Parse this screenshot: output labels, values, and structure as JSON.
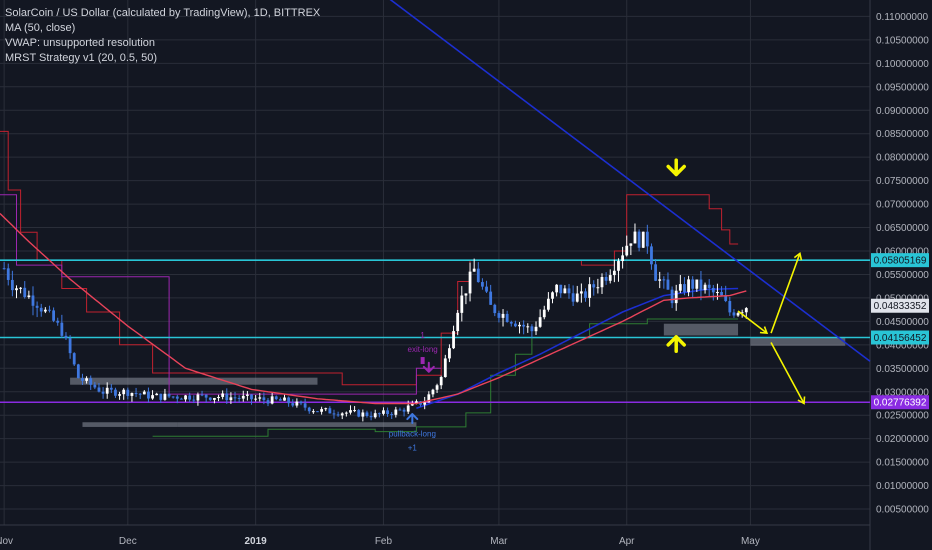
{
  "legend": {
    "line1": "SolarCoin / US Dollar (calculated by TradingView), 1D, BITTREX",
    "line2": "MA (50, close)",
    "line3": "VWAP: unsupported resolution",
    "line4": "MRST Strategy v1 (20, 0.5, 50)"
  },
  "colors": {
    "background": "#131722",
    "grid": "#2a2e39",
    "candle_up": "#ffffff",
    "candle_down": "#3f78e0",
    "ma": "#e8435a",
    "blue_line": "#1c2fd0",
    "cyan_line": "#29c5d6",
    "purple_line": "#8a2be2",
    "channel_upper": "#c0212f",
    "channel_lower": "#2e7d32",
    "channel_purple": "#9c27b0",
    "yellow": "#f5f500"
  },
  "chart_data": {
    "type": "candlestick",
    "y_axis_ticks": [
      "0.11000000",
      "0.10500000",
      "0.10000000",
      "0.09500000",
      "0.09000000",
      "0.08500000",
      "0.08000000",
      "0.07500000",
      "0.07000000",
      "0.06500000",
      "0.06000000",
      "0.05500000",
      "0.05000000",
      "0.04500000",
      "0.04000000",
      "0.03500000",
      "0.03000000",
      "0.02500000",
      "0.02000000",
      "0.01500000",
      "0.01000000",
      "0.00500000"
    ],
    "y_axis_values": [
      0.11,
      0.105,
      0.1,
      0.095,
      0.09,
      0.085,
      0.08,
      0.075,
      0.07,
      0.065,
      0.06,
      0.055,
      0.05,
      0.045,
      0.04,
      0.035,
      0.03,
      0.025,
      0.02,
      0.015,
      0.01,
      0.005
    ],
    "ylim": [
      0.0016,
      0.1135
    ],
    "x_axis_labels": [
      {
        "label": "Nov",
        "bold": false
      },
      {
        "label": "Dec",
        "bold": false
      },
      {
        "label": "2019",
        "bold": true
      },
      {
        "label": "Feb",
        "bold": false
      },
      {
        "label": "Mar",
        "bold": false
      },
      {
        "label": "Apr",
        "bold": false
      },
      {
        "label": "May",
        "bold": false
      }
    ],
    "x_axis_days": [
      0,
      30,
      61,
      92,
      120,
      151,
      181
    ],
    "x_range_days": [
      -1,
      210
    ],
    "price_tags": [
      {
        "label": "0.05805169",
        "value": 0.05805169,
        "bg": "#29c5d6",
        "fg": "#131722"
      },
      {
        "label": "0.04833352",
        "value": 0.04833352,
        "bg": "#e0e3eb",
        "fg": "#131722"
      },
      {
        "label": "0.04156452",
        "value": 0.04156452,
        "bg": "#29c5d6",
        "fg": "#131722"
      },
      {
        "label": "0.02776392",
        "value": 0.02776392,
        "bg": "#8a2be2",
        "fg": "#ffffff"
      }
    ],
    "horizontal_lines": [
      {
        "name": "resistance",
        "value": 0.05805169,
        "color": "#29c5d6"
      },
      {
        "name": "support",
        "value": 0.04156452,
        "color": "#29c5d6"
      },
      {
        "name": "target",
        "value": 0.02776392,
        "color": "#8a2be2"
      }
    ],
    "trendline": {
      "from_day": 84,
      "from_value": 0.12,
      "to_day": 210,
      "to_value": 0.0365
    },
    "annotations": {
      "exit_long": "exit-long",
      "exit_long_num": "1",
      "pullback_long": "pullback-long",
      "pullback_long_num": "+1"
    },
    "anchors": [
      {
        "day": -1,
        "value": 0.058
      },
      {
        "day": 2,
        "value": 0.053
      },
      {
        "day": 8,
        "value": 0.049
      },
      {
        "day": 14,
        "value": 0.043
      },
      {
        "day": 18,
        "value": 0.033
      },
      {
        "day": 24,
        "value": 0.03
      },
      {
        "day": 30,
        "value": 0.03
      },
      {
        "day": 36,
        "value": 0.029
      },
      {
        "day": 44,
        "value": 0.029
      },
      {
        "day": 52,
        "value": 0.029
      },
      {
        "day": 60,
        "value": 0.0285
      },
      {
        "day": 68,
        "value": 0.028
      },
      {
        "day": 76,
        "value": 0.026
      },
      {
        "day": 84,
        "value": 0.0255
      },
      {
        "day": 90,
        "value": 0.025
      },
      {
        "day": 96,
        "value": 0.026
      },
      {
        "day": 102,
        "value": 0.028
      },
      {
        "day": 106,
        "value": 0.033
      },
      {
        "day": 110,
        "value": 0.048
      },
      {
        "day": 114,
        "value": 0.056
      },
      {
        "day": 118,
        "value": 0.048
      },
      {
        "day": 124,
        "value": 0.045
      },
      {
        "day": 128,
        "value": 0.043
      },
      {
        "day": 134,
        "value": 0.052
      },
      {
        "day": 140,
        "value": 0.05
      },
      {
        "day": 146,
        "value": 0.055
      },
      {
        "day": 150,
        "value": 0.06
      },
      {
        "day": 152,
        "value": 0.063
      },
      {
        "day": 156,
        "value": 0.062
      },
      {
        "day": 158,
        "value": 0.055
      },
      {
        "day": 162,
        "value": 0.05
      },
      {
        "day": 166,
        "value": 0.053
      },
      {
        "day": 170,
        "value": 0.052
      },
      {
        "day": 174,
        "value": 0.05
      },
      {
        "day": 176,
        "value": 0.047
      },
      {
        "day": 178,
        "value": 0.0475
      },
      {
        "day": 180,
        "value": 0.0483
      }
    ],
    "ma_anchors": [
      {
        "day": -1,
        "value": 0.068
      },
      {
        "day": 6,
        "value": 0.062
      },
      {
        "day": 16,
        "value": 0.054
      },
      {
        "day": 30,
        "value": 0.044
      },
      {
        "day": 44,
        "value": 0.035
      },
      {
        "day": 60,
        "value": 0.0305
      },
      {
        "day": 76,
        "value": 0.0285
      },
      {
        "day": 90,
        "value": 0.0275
      },
      {
        "day": 100,
        "value": 0.0275
      },
      {
        "day": 110,
        "value": 0.0295
      },
      {
        "day": 120,
        "value": 0.033
      },
      {
        "day": 130,
        "value": 0.037
      },
      {
        "day": 140,
        "value": 0.041
      },
      {
        "day": 150,
        "value": 0.045
      },
      {
        "day": 160,
        "value": 0.0495
      },
      {
        "day": 166,
        "value": 0.05
      },
      {
        "day": 176,
        "value": 0.0505
      },
      {
        "day": 180,
        "value": 0.0515
      }
    ],
    "upper_channel": [
      {
        "day": -1,
        "value": 0.0855
      },
      {
        "day": 1,
        "value": 0.0855
      },
      {
        "day": 1,
        "value": 0.073
      },
      {
        "day": 4,
        "value": 0.073
      },
      {
        "day": 4,
        "value": 0.064
      },
      {
        "day": 8,
        "value": 0.064
      },
      {
        "day": 8,
        "value": 0.058
      },
      {
        "day": 14,
        "value": 0.058
      },
      {
        "day": 14,
        "value": 0.052
      },
      {
        "day": 20,
        "value": 0.052
      },
      {
        "day": 20,
        "value": 0.047
      },
      {
        "day": 28,
        "value": 0.047
      },
      {
        "day": 28,
        "value": 0.04
      },
      {
        "day": 36,
        "value": 0.04
      },
      {
        "day": 36,
        "value": 0.034
      },
      {
        "day": 82,
        "value": 0.034
      },
      {
        "day": 82,
        "value": 0.0315
      },
      {
        "day": 100,
        "value": 0.0315
      },
      {
        "day": 100,
        "value": 0.0335
      },
      {
        "day": 106,
        "value": 0.0335
      },
      {
        "day": 106,
        "value": 0.0425
      },
      {
        "day": 110,
        "value": 0.0425
      },
      {
        "day": 110,
        "value": 0.0535
      },
      {
        "day": 113,
        "value": 0.0535
      },
      {
        "day": 113,
        "value": 0.058
      },
      {
        "day": 140,
        "value": 0.058
      },
      {
        "day": 140,
        "value": 0.057
      },
      {
        "day": 148,
        "value": 0.057
      },
      {
        "day": 148,
        "value": 0.06
      },
      {
        "day": 151,
        "value": 0.06
      },
      {
        "day": 151,
        "value": 0.072
      },
      {
        "day": 171,
        "value": 0.072
      },
      {
        "day": 171,
        "value": 0.069
      },
      {
        "day": 174,
        "value": 0.069
      },
      {
        "day": 174,
        "value": 0.0645
      },
      {
        "day": 176,
        "value": 0.0645
      },
      {
        "day": 176,
        "value": 0.0615
      },
      {
        "day": 178,
        "value": 0.0615
      }
    ],
    "lower_channel": [
      {
        "day": 36,
        "value": 0.0205
      },
      {
        "day": 64,
        "value": 0.0205
      },
      {
        "day": 64,
        "value": 0.022
      },
      {
        "day": 90,
        "value": 0.022
      },
      {
        "day": 90,
        "value": 0.0215
      },
      {
        "day": 100,
        "value": 0.0215
      },
      {
        "day": 100,
        "value": 0.0225
      },
      {
        "day": 112,
        "value": 0.0225
      },
      {
        "day": 112,
        "value": 0.0255
      },
      {
        "day": 118,
        "value": 0.0255
      },
      {
        "day": 118,
        "value": 0.0335
      },
      {
        "day": 124,
        "value": 0.0335
      },
      {
        "day": 124,
        "value": 0.038
      },
      {
        "day": 128,
        "value": 0.038
      },
      {
        "day": 128,
        "value": 0.0415
      },
      {
        "day": 142,
        "value": 0.0415
      },
      {
        "day": 142,
        "value": 0.0445
      },
      {
        "day": 156,
        "value": 0.0445
      },
      {
        "day": 156,
        "value": 0.0455
      },
      {
        "day": 178,
        "value": 0.0455
      }
    ],
    "purple_channel": [
      {
        "day": -1,
        "value": 0.072
      },
      {
        "day": 3,
        "value": 0.072
      },
      {
        "day": 3,
        "value": 0.057
      },
      {
        "day": 14,
        "value": 0.057
      },
      {
        "day": 14,
        "value": 0.0545
      },
      {
        "day": 40,
        "value": 0.0545
      },
      {
        "day": 40,
        "value": 0.0295
      },
      {
        "day": 100,
        "value": 0.0295
      },
      {
        "day": 100,
        "value": 0.035
      },
      {
        "day": 106,
        "value": 0.035
      }
    ],
    "support_boxes": [
      {
        "from_day": 16,
        "to_day": 76,
        "low": 0.0315,
        "high": 0.033
      },
      {
        "from_day": 19,
        "to_day": 42,
        "low": 0.0225,
        "high": 0.0235
      },
      {
        "from_day": 42,
        "to_day": 100,
        "low": 0.0225,
        "high": 0.0235
      },
      {
        "from_day": 160,
        "to_day": 178,
        "low": 0.042,
        "high": 0.0445
      },
      {
        "from_day": 181,
        "to_day": 204,
        "low": 0.0398,
        "high": 0.0415
      }
    ],
    "arrows": [
      {
        "name": "down-arrow-top",
        "day": 163,
        "value": 0.0775,
        "dir": "down",
        "color": "#f5f500"
      },
      {
        "name": "up-arrow-bottom",
        "day": 163,
        "value": 0.0405,
        "dir": "up",
        "color": "#f5f500"
      },
      {
        "name": "pullback-up-arrow",
        "day": 99,
        "value": 0.0245,
        "dir": "up",
        "color": "#3f78e0"
      },
      {
        "name": "exit-down-arrow",
        "day": 103,
        "value": 0.035,
        "dir": "down",
        "color": "#9c27b0"
      }
    ],
    "projection_lines": [
      {
        "from_day": 178,
        "from_value": 0.0472,
        "to_day": 185,
        "to_value": 0.0425
      },
      {
        "from_day": 186,
        "from_value": 0.0425,
        "to_day": 193,
        "to_value": 0.0595
      },
      {
        "from_day": 186,
        "from_value": 0.0405,
        "to_day": 194,
        "to_value": 0.0275
      }
    ]
  }
}
